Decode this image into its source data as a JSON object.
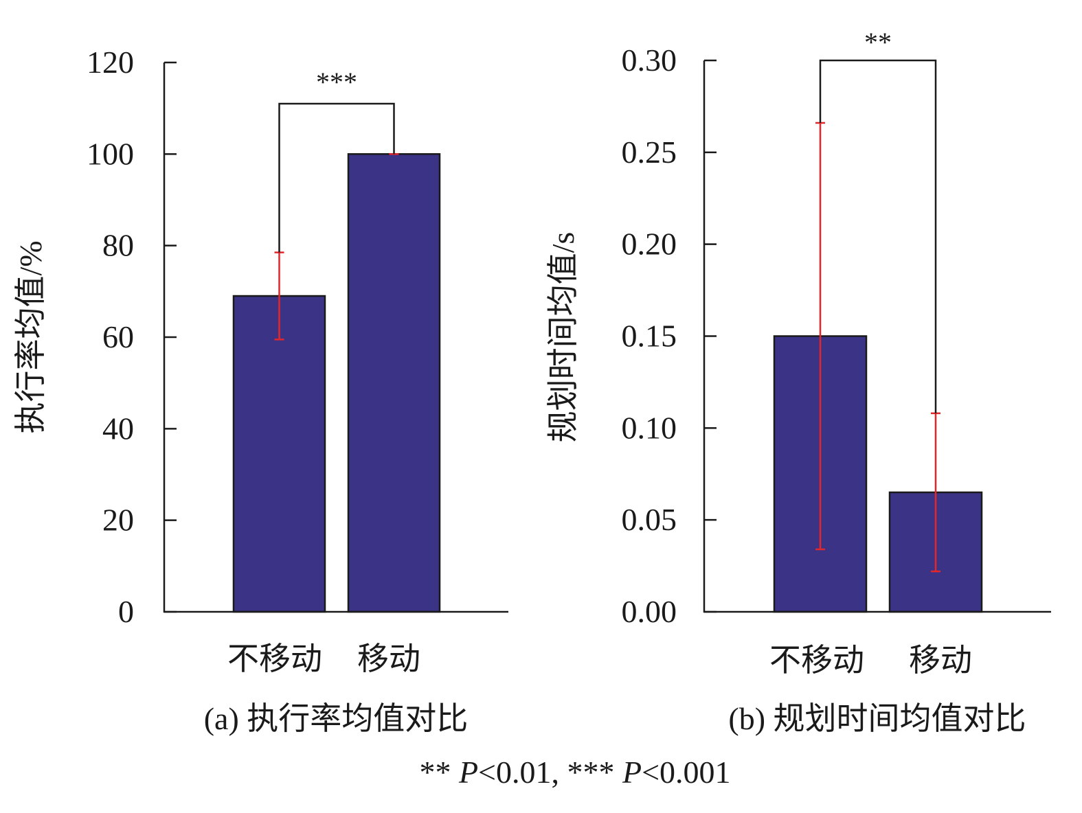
{
  "chart_data": [
    {
      "type": "bar",
      "panel": "a",
      "caption": "(a) 执行率均值对比",
      "ylabel": "执行率均值/%",
      "categories": [
        "不移动",
        "移动"
      ],
      "values": [
        69,
        100
      ],
      "errors": [
        9.5,
        0
      ],
      "ylim": [
        0,
        120
      ],
      "yticks": [
        "0",
        "20",
        "40",
        "60",
        "80",
        "100",
        "120"
      ],
      "significance": "***",
      "bar_color": "#3b3486",
      "error_color": "#e3262a"
    },
    {
      "type": "bar",
      "panel": "b",
      "caption": "(b) 规划时间均值对比",
      "ylabel": "规划时间均值/s",
      "categories": [
        "不移动",
        "移动"
      ],
      "values": [
        0.15,
        0.065
      ],
      "errors": [
        0.116,
        0.043
      ],
      "ylim": [
        0,
        0.3
      ],
      "yticks": [
        "0.00",
        "0.05",
        "0.10",
        "0.15",
        "0.20",
        "0.25",
        "0.30"
      ],
      "significance": "**",
      "bar_color": "#3b3486",
      "error_color": "#e3262a"
    }
  ],
  "footnote": {
    "part1_stars": "** ",
    "part1_p": "P",
    "part1_rest": "<0.01, ",
    "part2_stars": "*** ",
    "part2_p": "P",
    "part2_rest": "<0.001"
  }
}
